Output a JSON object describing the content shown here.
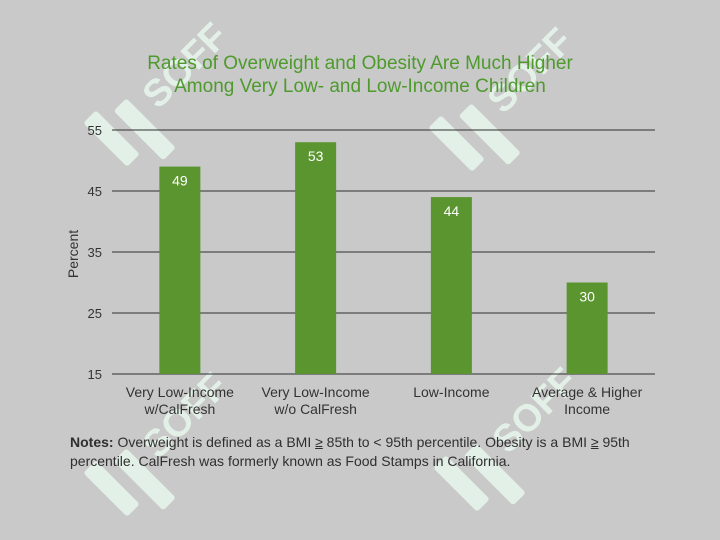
{
  "title": {
    "line1": "Rates of Overweight and Obesity Are Much Higher",
    "line2": "Among Very Low- and Low-Income Children"
  },
  "notes": {
    "label": "Notes:",
    "text_a": "Overweight is defined as a BMI ",
    "sym1": "≥",
    "text_b": " 85th to < 95th percentile. Obesity is a BMI ",
    "sym2": "≥",
    "text_c": " 95th percentile. CalFresh was formerly known as Food Stamps in California."
  },
  "colors": {
    "background": "#c9c9c9",
    "bar": "#5a9530",
    "title": "#4e9a2d",
    "gridline": "#2f2f2f",
    "watermark": "#e8f7ee"
  },
  "watermark": {
    "text": "SOFF"
  },
  "chart_data": {
    "type": "bar",
    "title": "Rates of Overweight and Obesity Are Much Higher Among Very Low- and Low-Income Children",
    "xlabel": "",
    "ylabel": "Percent",
    "categories": [
      [
        "Very Low-Income",
        "w/CalFresh"
      ],
      [
        "Very Low-Income",
        "w/o CalFresh"
      ],
      [
        "Low-Income"
      ],
      [
        "Average & Higher",
        "Income"
      ]
    ],
    "values": [
      49,
      53,
      44,
      30
    ],
    "ylim": [
      15,
      55
    ],
    "yticks": [
      15,
      25,
      35,
      45,
      55
    ],
    "grid": true,
    "data_labels": true
  }
}
